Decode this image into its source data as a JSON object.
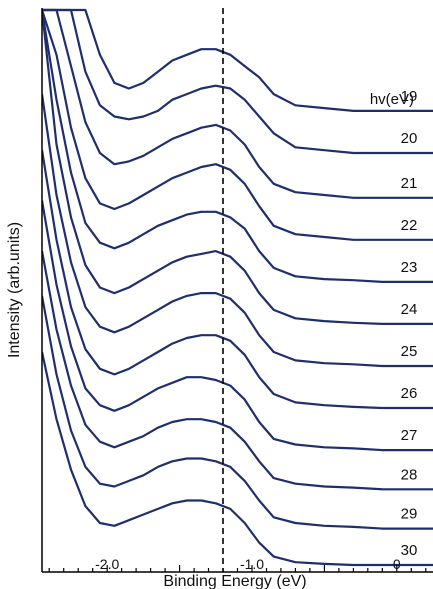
{
  "chart_data": {
    "type": "line",
    "title": "",
    "xlabel": "Binding Energy (eV)",
    "ylabel": "Intensity (arb.units)",
    "xlim": [
      -2.45,
      0.25
    ],
    "x_ticks": [
      -2.0,
      -1.0,
      0
    ],
    "x_tick_labels": [
      "-2.0",
      "-1.0",
      "0"
    ],
    "reference_line_x": -1.2,
    "legend_title": "hv(eV)",
    "line_color": "#1f2f6e",
    "x": [
      -2.45,
      -2.35,
      -2.25,
      -2.15,
      -2.05,
      -1.95,
      -1.85,
      -1.75,
      -1.65,
      -1.55,
      -1.45,
      -1.35,
      -1.25,
      -1.15,
      -1.05,
      -0.95,
      -0.85,
      -0.7,
      -0.5,
      -0.3,
      -0.1,
      0.1,
      0.25
    ],
    "series": [
      {
        "name": "19",
        "values": [
          9.9,
          9.9,
          9.9,
          9.9,
          9.1,
          8.6,
          8.5,
          8.6,
          8.8,
          9.0,
          9.1,
          9.2,
          9.2,
          9.1,
          8.9,
          8.7,
          8.4,
          8.2,
          8.15,
          8.1,
          8.1,
          8.1,
          8.1
        ]
      },
      {
        "name": "20",
        "values": [
          9.9,
          9.9,
          9.9,
          8.8,
          8.2,
          8.0,
          7.95,
          8.0,
          8.1,
          8.3,
          8.4,
          8.5,
          8.55,
          8.5,
          8.3,
          8.0,
          7.7,
          7.45,
          7.4,
          7.35,
          7.35,
          7.35,
          7.35
        ]
      },
      {
        "name": "21",
        "values": [
          9.9,
          9.9,
          8.9,
          7.9,
          7.35,
          7.15,
          7.2,
          7.3,
          7.45,
          7.6,
          7.7,
          7.8,
          7.85,
          7.75,
          7.5,
          7.1,
          6.8,
          6.65,
          6.6,
          6.55,
          6.55,
          6.55,
          6.55
        ]
      },
      {
        "name": "22",
        "values": [
          9.9,
          9.1,
          7.8,
          6.9,
          6.45,
          6.35,
          6.45,
          6.6,
          6.75,
          6.9,
          7.0,
          7.1,
          7.15,
          7.05,
          6.8,
          6.4,
          6.05,
          5.9,
          5.85,
          5.8,
          5.8,
          5.8,
          5.8
        ]
      },
      {
        "name": "23",
        "values": [
          9.9,
          8.3,
          7.0,
          6.1,
          5.75,
          5.65,
          5.75,
          5.9,
          6.05,
          6.15,
          6.25,
          6.3,
          6.3,
          6.2,
          6.0,
          5.6,
          5.3,
          5.15,
          5.1,
          5.08,
          5.05,
          5.05,
          5.05
        ]
      },
      {
        "name": "24",
        "values": [
          9.9,
          7.5,
          6.2,
          5.35,
          4.95,
          4.85,
          4.95,
          5.1,
          5.25,
          5.4,
          5.5,
          5.55,
          5.6,
          5.5,
          5.25,
          4.85,
          4.55,
          4.4,
          4.35,
          4.32,
          4.3,
          4.3,
          4.3
        ]
      },
      {
        "name": "25",
        "values": [
          8.4,
          6.6,
          5.4,
          4.6,
          4.25,
          4.15,
          4.25,
          4.4,
          4.55,
          4.7,
          4.8,
          4.85,
          4.85,
          4.75,
          4.5,
          4.1,
          3.8,
          3.65,
          3.6,
          3.58,
          3.55,
          3.55,
          3.55
        ]
      },
      {
        "name": "26",
        "values": [
          7.4,
          5.8,
          4.6,
          3.85,
          3.5,
          3.4,
          3.5,
          3.65,
          3.8,
          3.95,
          4.05,
          4.1,
          4.1,
          4.0,
          3.75,
          3.35,
          3.05,
          2.9,
          2.85,
          2.82,
          2.8,
          2.8,
          2.8
        ]
      },
      {
        "name": "27",
        "values": [
          6.5,
          5.0,
          3.9,
          3.15,
          2.85,
          2.75,
          2.85,
          3.0,
          3.15,
          3.25,
          3.35,
          3.35,
          3.3,
          3.2,
          2.95,
          2.55,
          2.25,
          2.15,
          2.1,
          2.08,
          2.05,
          2.05,
          2.05
        ]
      },
      {
        "name": "28",
        "values": [
          5.6,
          4.2,
          3.2,
          2.5,
          2.2,
          2.1,
          2.2,
          2.3,
          2.45,
          2.55,
          2.6,
          2.6,
          2.55,
          2.45,
          2.2,
          1.85,
          1.55,
          1.45,
          1.4,
          1.38,
          1.35,
          1.35,
          1.35
        ]
      },
      {
        "name": "29",
        "values": [
          4.8,
          3.4,
          2.4,
          1.75,
          1.45,
          1.4,
          1.5,
          1.6,
          1.75,
          1.85,
          1.9,
          1.9,
          1.85,
          1.75,
          1.5,
          1.15,
          0.85,
          0.75,
          0.7,
          0.68,
          0.65,
          0.65,
          0.65
        ]
      },
      {
        "name": "30",
        "values": [
          3.8,
          2.6,
          1.7,
          1.05,
          0.75,
          0.7,
          0.8,
          0.9,
          1.0,
          1.1,
          1.15,
          1.15,
          1.1,
          1.0,
          0.75,
          0.4,
          0.15,
          0.05,
          0.02,
          0.0,
          0.0,
          0.0,
          0.0
        ]
      }
    ]
  }
}
